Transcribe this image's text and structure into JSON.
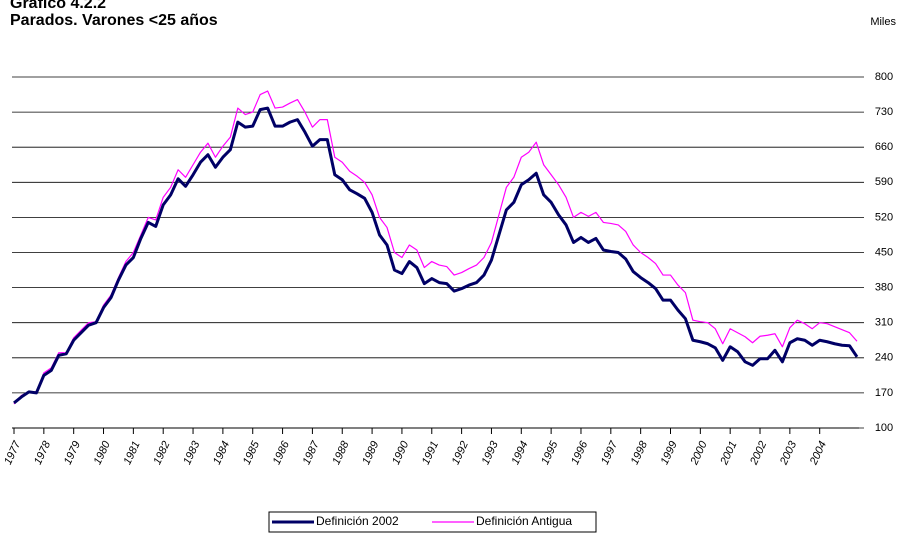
{
  "chart_data": {
    "type": "line",
    "title": "Gráfico 4.2.2",
    "subtitle": "Parados. Varones <25 años",
    "unit_label": "Miles",
    "categories": [
      "1977",
      null,
      null,
      null,
      "1978",
      null,
      null,
      null,
      "1979",
      null,
      null,
      null,
      "1980",
      null,
      null,
      null,
      "1981",
      null,
      null,
      null,
      "1982",
      null,
      null,
      null,
      "1983",
      null,
      null,
      null,
      "1984",
      null,
      null,
      null,
      "1985",
      null,
      null,
      null,
      "1986",
      null,
      null,
      null,
      "1987",
      null,
      null,
      null,
      "1988",
      null,
      null,
      null,
      "1989",
      null,
      null,
      null,
      "1990",
      null,
      null,
      null,
      "1991",
      null,
      null,
      null,
      "1992",
      null,
      null,
      null,
      "1993",
      null,
      null,
      null,
      "1994",
      null,
      null,
      null,
      "1995",
      null,
      null,
      null,
      "1996",
      null,
      null,
      null,
      "1997",
      null,
      null,
      null,
      "1998",
      null,
      null,
      null,
      "1999",
      null,
      null,
      null,
      "2000",
      null,
      null,
      null,
      "2001",
      null,
      null,
      null,
      "2002",
      null,
      null,
      null,
      "2003",
      null,
      null,
      null,
      "2004",
      null,
      null,
      null,
      null,
      null
    ],
    "series": [
      {
        "name": "Definición 2002",
        "color": "#000066",
        "width": 3,
        "values": [
          150,
          162,
          172,
          170,
          205,
          215,
          245,
          248,
          275,
          290,
          305,
          310,
          340,
          360,
          395,
          425,
          440,
          478,
          510,
          502,
          545,
          565,
          597,
          582,
          605,
          630,
          645,
          620,
          640,
          655,
          710,
          700,
          702,
          735,
          738,
          702,
          702,
          710,
          715,
          690,
          662,
          675,
          675,
          605,
          595,
          575,
          567,
          558,
          530,
          485,
          465,
          415,
          408,
          432,
          420,
          388,
          398,
          390,
          388,
          373,
          378,
          385,
          390,
          405,
          435,
          485,
          535,
          550,
          585,
          595,
          608,
          565,
          550,
          525,
          505,
          470,
          480,
          470,
          478,
          455,
          452,
          450,
          437,
          412,
          400,
          390,
          378,
          355,
          355,
          335,
          318,
          275,
          272,
          268,
          260,
          235,
          262,
          252,
          232,
          225,
          238,
          238,
          255,
          232,
          270,
          278,
          275,
          265,
          275,
          272,
          268,
          265,
          264,
          242
        ]
      },
      {
        "name": "Definición Antigua",
        "color": "#ff00ff",
        "width": 1.2,
        "values": [
          148,
          165,
          172,
          172,
          210,
          220,
          250,
          250,
          280,
          295,
          310,
          312,
          345,
          365,
          400,
          432,
          450,
          485,
          520,
          515,
          560,
          580,
          615,
          600,
          625,
          650,
          668,
          640,
          662,
          680,
          738,
          725,
          730,
          765,
          772,
          738,
          740,
          748,
          755,
          730,
          700,
          715,
          715,
          640,
          630,
          612,
          602,
          590,
          565,
          520,
          500,
          450,
          440,
          465,
          455,
          420,
          432,
          425,
          422,
          405,
          410,
          418,
          425,
          440,
          470,
          525,
          580,
          600,
          640,
          650,
          670,
          625,
          605,
          585,
          560,
          520,
          530,
          522,
          530,
          510,
          508,
          505,
          492,
          465,
          450,
          440,
          428,
          405,
          405,
          385,
          370,
          315,
          312,
          310,
          298,
          268,
          298,
          290,
          282,
          270,
          283,
          285,
          288,
          262,
          300,
          315,
          308,
          298,
          310,
          308,
          302,
          296,
          290,
          273
        ]
      }
    ],
    "ylim": [
      100,
      800
    ],
    "yticks": [
      100,
      170,
      240,
      310,
      380,
      450,
      520,
      590,
      660,
      730,
      800
    ],
    "grid": true
  }
}
